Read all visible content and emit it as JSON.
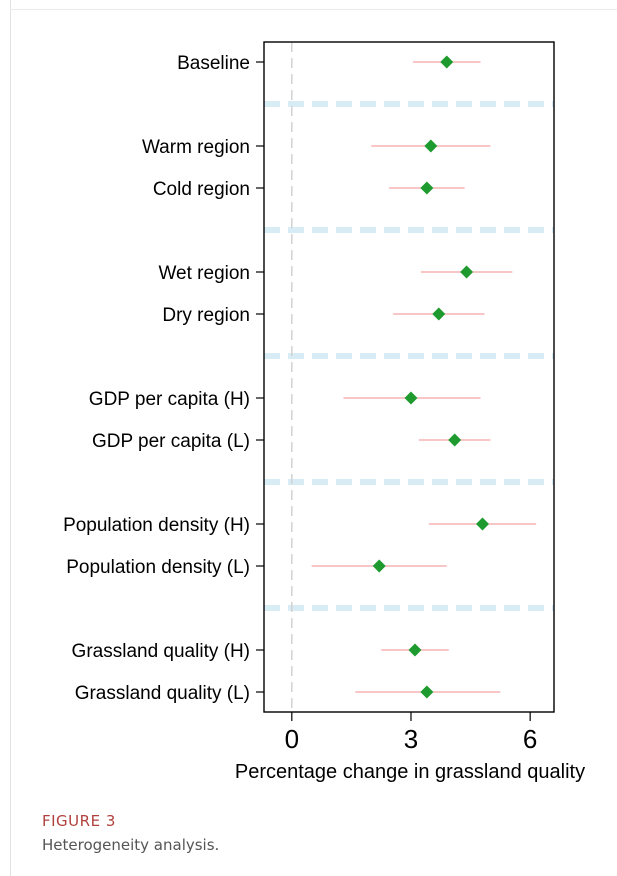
{
  "chart_data": {
    "type": "scatter",
    "subtype": "coefficient-plot-with-confidence-intervals",
    "xlabel": "Percentage change in grassland quality",
    "xlim": [
      -0.7,
      6.6
    ],
    "xticks": [
      0,
      3,
      6
    ],
    "reference_line_x": 0,
    "colors": {
      "point": "#1e9a2e",
      "ci": "#f4a3a3",
      "separator": "#d8ecf6",
      "reference": "#cfcfcf",
      "axis": "#000000"
    },
    "groups": [
      {
        "rows": [
          {
            "label": "Baseline",
            "estimate": 3.9,
            "ci": [
              3.05,
              4.75
            ]
          }
        ]
      },
      {
        "rows": [
          {
            "label": "Warm region",
            "estimate": 3.5,
            "ci": [
              2.0,
              5.0
            ]
          },
          {
            "label": "Cold region",
            "estimate": 3.4,
            "ci": [
              2.45,
              4.35
            ]
          }
        ]
      },
      {
        "rows": [
          {
            "label": "Wet region",
            "estimate": 4.4,
            "ci": [
              3.25,
              5.55
            ]
          },
          {
            "label": "Dry region",
            "estimate": 3.7,
            "ci": [
              2.55,
              4.85
            ]
          }
        ]
      },
      {
        "rows": [
          {
            "label": "GDP per capita (H)",
            "estimate": 3.0,
            "ci": [
              1.3,
              4.75
            ]
          },
          {
            "label": "GDP per capita (L)",
            "estimate": 4.1,
            "ci": [
              3.2,
              5.0
            ]
          }
        ]
      },
      {
        "rows": [
          {
            "label": "Population density (H)",
            "estimate": 4.8,
            "ci": [
              3.45,
              6.15
            ]
          },
          {
            "label": "Population density (L)",
            "estimate": 2.2,
            "ci": [
              0.5,
              3.9
            ]
          }
        ]
      },
      {
        "rows": [
          {
            "label": "Grassland quality (H)",
            "estimate": 3.1,
            "ci": [
              2.25,
              3.95
            ]
          },
          {
            "label": "Grassland quality (L)",
            "estimate": 3.4,
            "ci": [
              1.6,
              5.25
            ]
          }
        ]
      }
    ]
  },
  "figure": {
    "label": "FIGURE 3",
    "caption": "Heterogeneity analysis."
  }
}
